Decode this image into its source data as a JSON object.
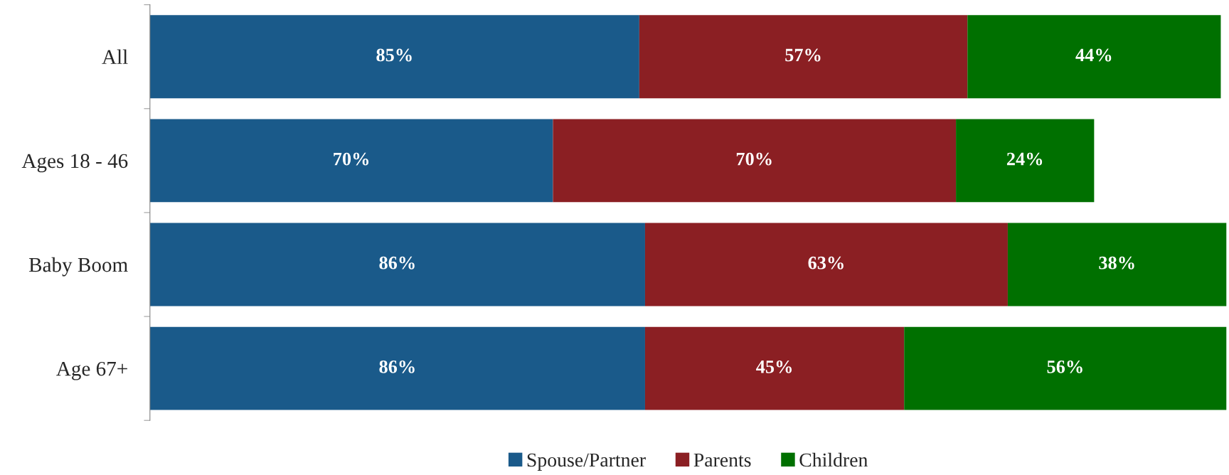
{
  "chart_data": {
    "type": "bar",
    "orientation": "horizontal",
    "stacked": true,
    "categories": [
      "All",
      "Ages 18 - 46",
      "Baby Boom",
      "Age 67+"
    ],
    "series": [
      {
        "name": "Spouse/Partner",
        "color": "#1a5a8a",
        "values": [
          85,
          70,
          86,
          86
        ],
        "value_labels": [
          "85%",
          "70%",
          "86%",
          "86%"
        ]
      },
      {
        "name": "Parents",
        "color": "#8b1f23",
        "values": [
          57,
          70,
          63,
          45
        ],
        "value_labels": [
          "57%",
          "70%",
          "63%",
          "45%"
        ]
      },
      {
        "name": "Children",
        "color": "#007000",
        "values": [
          44,
          24,
          38,
          56
        ],
        "value_labels": [
          "44%",
          "24%",
          "38%",
          "56%"
        ]
      }
    ],
    "xlim": [
      0,
      187
    ],
    "tick_labels": "y",
    "grid": false,
    "legend": "bottom"
  }
}
